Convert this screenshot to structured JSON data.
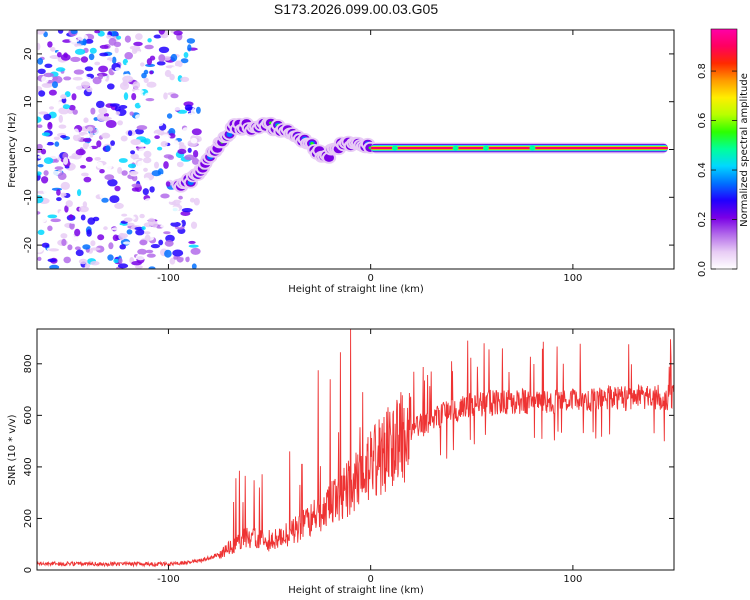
{
  "title": "S173.2026.099.00.03.G05",
  "chart_data": [
    {
      "type": "heatmap",
      "name": "spectrogram",
      "xlabel": "Height of straight line (km)",
      "ylabel": "Frequency (Hz)",
      "xlim": [
        -165,
        150
      ],
      "ylim": [
        -25,
        25
      ],
      "xticks": [
        -100,
        0,
        100
      ],
      "yticks": [
        -20,
        -10,
        0,
        10,
        20
      ],
      "colorbar": {
        "label": "Normalized spectral amplitude",
        "ticks": [
          0.0,
          0.2,
          0.4,
          0.6,
          0.8
        ],
        "range": [
          0,
          0.97
        ],
        "colors": [
          "#ffffff",
          "#e8ccf5",
          "#b36bea",
          "#7a00e6",
          "#2000ff",
          "#0070ff",
          "#00d8ff",
          "#00ff9a",
          "#2cff00",
          "#b8ff00",
          "#ffee00",
          "#ff9a00",
          "#ff2a00",
          "#ff0060",
          "#ff00a8"
        ]
      },
      "ridge": {
        "x": [
          -95,
          -88,
          -83,
          -78,
          -72,
          -66,
          -58,
          -50,
          -43,
          -36,
          -29,
          -22,
          -17,
          -12,
          -6,
          0
        ],
        "freq": [
          -7.5,
          -6.5,
          -4,
          -1,
          3,
          5,
          4.5,
          5,
          4,
          2.5,
          0.5,
          -1.5,
          0,
          1.5,
          1,
          0.5
        ]
      },
      "carrier": {
        "x_start": 0,
        "x_end": 147,
        "freq": 0.3,
        "amplitude": 0.9
      }
    },
    {
      "type": "line",
      "name": "snr",
      "xlabel": "Height of straight line (km)",
      "ylabel": "SNR (10 * v/v)",
      "xlim": [
        -165,
        150
      ],
      "ylim": [
        0,
        935
      ],
      "xticks": [
        -100,
        0,
        100
      ],
      "yticks": [
        0,
        200,
        400,
        600,
        800
      ],
      "color": "#ee3333",
      "envelope": {
        "x": [
          -165,
          -100,
          -85,
          -75,
          -67,
          -60,
          -50,
          -40,
          -30,
          -20,
          -10,
          0,
          10,
          20,
          30,
          40,
          50,
          60,
          80,
          100,
          120,
          150
        ],
        "snr": [
          25,
          22,
          35,
          60,
          100,
          130,
          110,
          140,
          190,
          260,
          320,
          400,
          480,
          540,
          580,
          620,
          640,
          650,
          655,
          660,
          665,
          670
        ]
      },
      "spikes": [
        {
          "x": -65,
          "snr": 385
        },
        {
          "x": -62,
          "snr": 365
        },
        {
          "x": -55,
          "snr": 320
        },
        {
          "x": -40,
          "snr": 460
        },
        {
          "x": -34,
          "snr": 410
        },
        {
          "x": -26,
          "snr": 775
        },
        {
          "x": -20,
          "snr": 740
        },
        {
          "x": -15,
          "snr": 845
        },
        {
          "x": -10,
          "snr": 935
        },
        {
          "x": -4,
          "snr": 690
        },
        {
          "x": 15,
          "snr": 690
        },
        {
          "x": 30,
          "snr": 770
        },
        {
          "x": 40,
          "snr": 810
        },
        {
          "x": 48,
          "snr": 890
        },
        {
          "x": 56,
          "snr": 880
        }
      ]
    }
  ]
}
